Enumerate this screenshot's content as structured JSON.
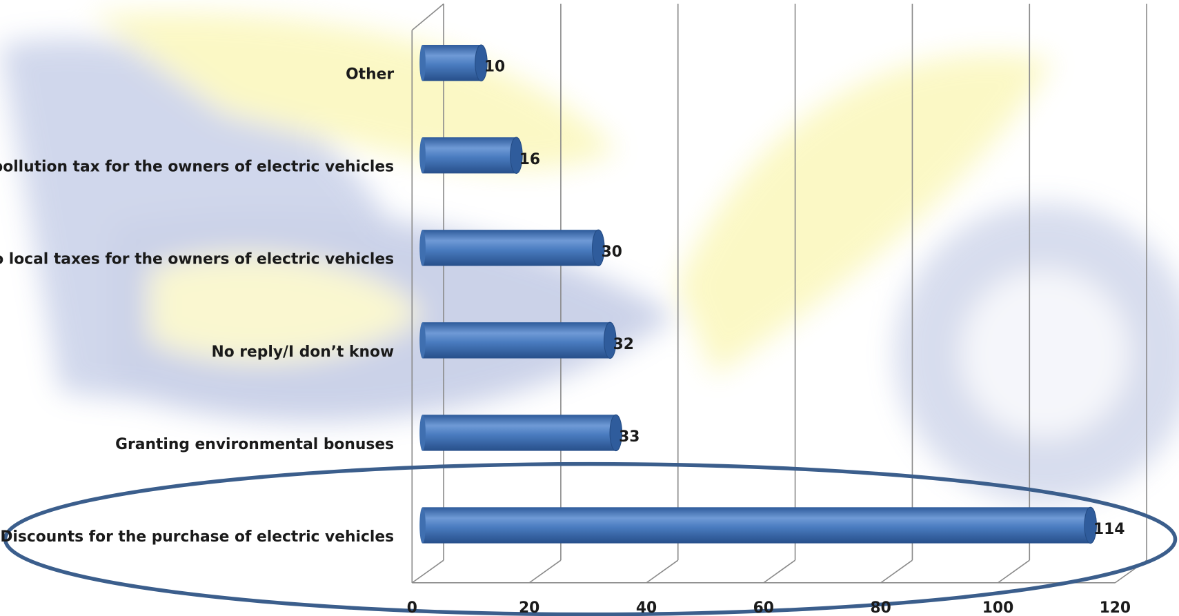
{
  "chart_data": {
    "type": "bar",
    "orientation": "horizontal",
    "categories": [
      "Other",
      "No pollution tax for the owners of electric vehicles",
      "No local taxes for the owners of electric vehicles",
      "No reply/I don’t know",
      "Granting environmental bonuses",
      "Discounts for the purchase of electric vehicles"
    ],
    "values": [
      10,
      16,
      30,
      32,
      33,
      114
    ],
    "color": "#4a7cc0",
    "xlim": [
      0,
      120
    ],
    "xticks": [
      0,
      20,
      40,
      60,
      80,
      100,
      120
    ],
    "grid": true
  }
}
